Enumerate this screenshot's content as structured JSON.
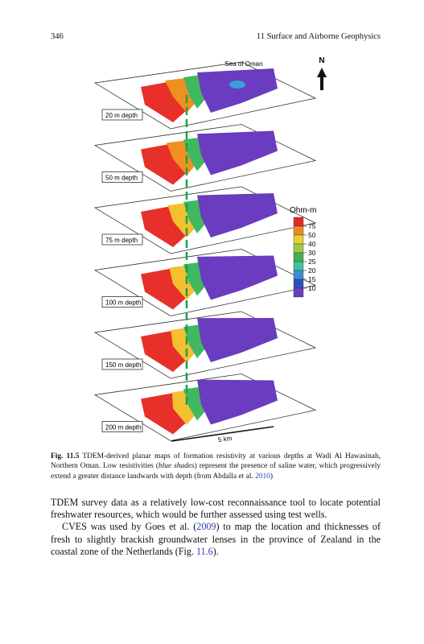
{
  "header": {
    "page_number": "346",
    "running_title": "11   Surface and Airborne Geophysics"
  },
  "figure": {
    "sea_label": "Sea of Oman",
    "north_label": "N",
    "depth_labels": [
      "20 m depth",
      "50 m depth",
      "75 m depth",
      "100 m depth",
      "150 m depth",
      "200 m depth"
    ],
    "legend_title": "Ohm-m",
    "legend_labels": [
      "75",
      "50",
      "40",
      "30",
      "25",
      "20",
      "15",
      "10"
    ],
    "scale_label": "5 km"
  },
  "caption": {
    "label": "Fig. 11.5",
    "text_1": " TDEM-derived planar maps of formation resistivity at various depths at Wadi Al Hawasinah, Northern Oman. Low resistivities (",
    "emphasis": "blue shades",
    "text_2": ") represent the presence of saline water, which progressively extend a greater distance landwards with depth (from Abdalla et al. ",
    "citation_year": "2010",
    "text_3": ")"
  },
  "body": {
    "paragraph_1": "TDEM survey data as a relatively low-cost reconnaissance tool to locate potential freshwater resources, which would be further assessed using test wells.",
    "paragraph_2_a": "CVES was used by Goes et al. (",
    "paragraph_2_year": "2009",
    "paragraph_2_b": ") to map the location and thicknesses of fresh to slightly brackish groundwater lenses in the province of Zealand in the coastal zone of the Netherlands (Fig. ",
    "paragraph_2_fig": "11.6",
    "paragraph_2_c": ")."
  }
}
